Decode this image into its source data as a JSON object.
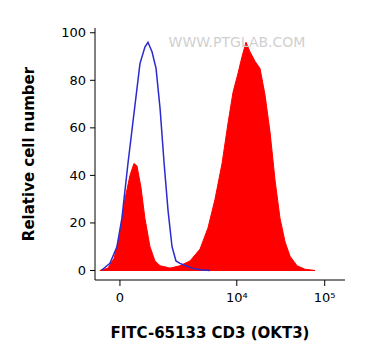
{
  "chart_data": {
    "type": "line",
    "x_label": "FITC-65133 CD3 (OKT3)",
    "y_label": "Relative cell number",
    "annotation": "WWW.PTGLAB.COM",
    "log": "x",
    "xlim": [
      -660,
      170000
    ],
    "ylim": [
      -4,
      102
    ],
    "xticks": [
      0,
      {
        "value": 10000,
        "label": "10⁴"
      },
      {
        "value": 100000,
        "label": "10⁵"
      }
    ],
    "yticks": [
      0,
      20,
      40,
      60,
      80,
      100
    ],
    "series": [
      {
        "type": "area",
        "color": "#ff0000",
        "x": [
          -517,
          -301,
          -149,
          0,
          124,
          250,
          353,
          434,
          545,
          661,
          820,
          990,
          1183,
          1622,
          2169,
          2867,
          3772,
          4677,
          5630,
          6780,
          7940,
          9062,
          10335,
          11476,
          12740,
          14145,
          16125,
          18389,
          20935,
          23952,
          27253,
          31025,
          35457,
          40360,
          48470,
          59786,
          77703
        ],
        "values": [
          0,
          1,
          5,
          15,
          30,
          40,
          45,
          44,
          35,
          22,
          10,
          4,
          2,
          1,
          2,
          4,
          9,
          18,
          30,
          45,
          62,
          75,
          83,
          90,
          96,
          92,
          88,
          85,
          74,
          58,
          38,
          22,
          12,
          6,
          2,
          0.5,
          0
        ]
      },
      {
        "type": "line",
        "color": "#2a2ad0",
        "x": [
          -480,
          -250,
          -74,
          49,
          199,
          517,
          661,
          755,
          887,
          1029,
          1183,
          1349,
          1528,
          1721,
          1933,
          2169,
          2565,
          3036,
          3772,
          4932
        ],
        "values": [
          0,
          3,
          10,
          22,
          45,
          87,
          94,
          96,
          92,
          85,
          68,
          45,
          25,
          10,
          4,
          3,
          2,
          1,
          0.3,
          0
        ]
      }
    ]
  }
}
